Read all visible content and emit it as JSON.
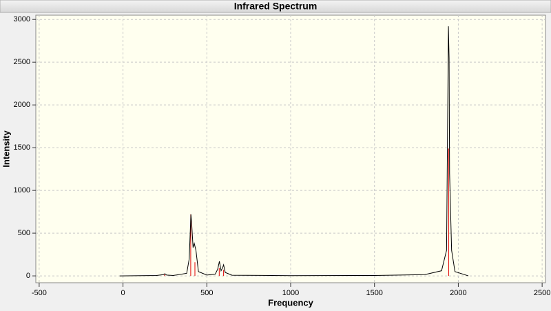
{
  "chart_data": {
    "type": "line",
    "title": "Infrared Spectrum",
    "x_label": "Frequency",
    "y_label": "Intensity",
    "xlim": [
      -520,
      2520
    ],
    "ylim": [
      -80,
      3050
    ],
    "xticks": [
      -500,
      0,
      500,
      1000,
      1500,
      2000,
      2500
    ],
    "yticks": [
      0,
      500,
      1000,
      1500,
      2000,
      2500,
      3000
    ],
    "grid": true,
    "series": [
      {
        "color": "#000000",
        "x": [
          -20,
          200,
          240,
          250,
          260,
          300,
          380,
          395,
          405,
          410,
          418,
          425,
          435,
          450,
          500,
          550,
          565,
          575,
          585,
          595,
          600,
          610,
          650,
          1000,
          1500,
          1800,
          1900,
          1930,
          1941,
          1945,
          1948,
          1960,
          1980,
          2060
        ],
        "values": [
          0,
          5,
          15,
          25,
          10,
          5,
          30,
          200,
          720,
          600,
          330,
          380,
          300,
          50,
          10,
          20,
          80,
          170,
          60,
          100,
          130,
          40,
          8,
          3,
          5,
          15,
          60,
          300,
          2920,
          2550,
          1200,
          300,
          50,
          0
        ]
      }
    ],
    "sticks": {
      "color": "#e00000",
      "x": [
        248,
        404,
        429,
        574,
        600,
        1943
      ],
      "values": [
        20,
        720,
        160,
        90,
        70,
        1490
      ]
    }
  }
}
